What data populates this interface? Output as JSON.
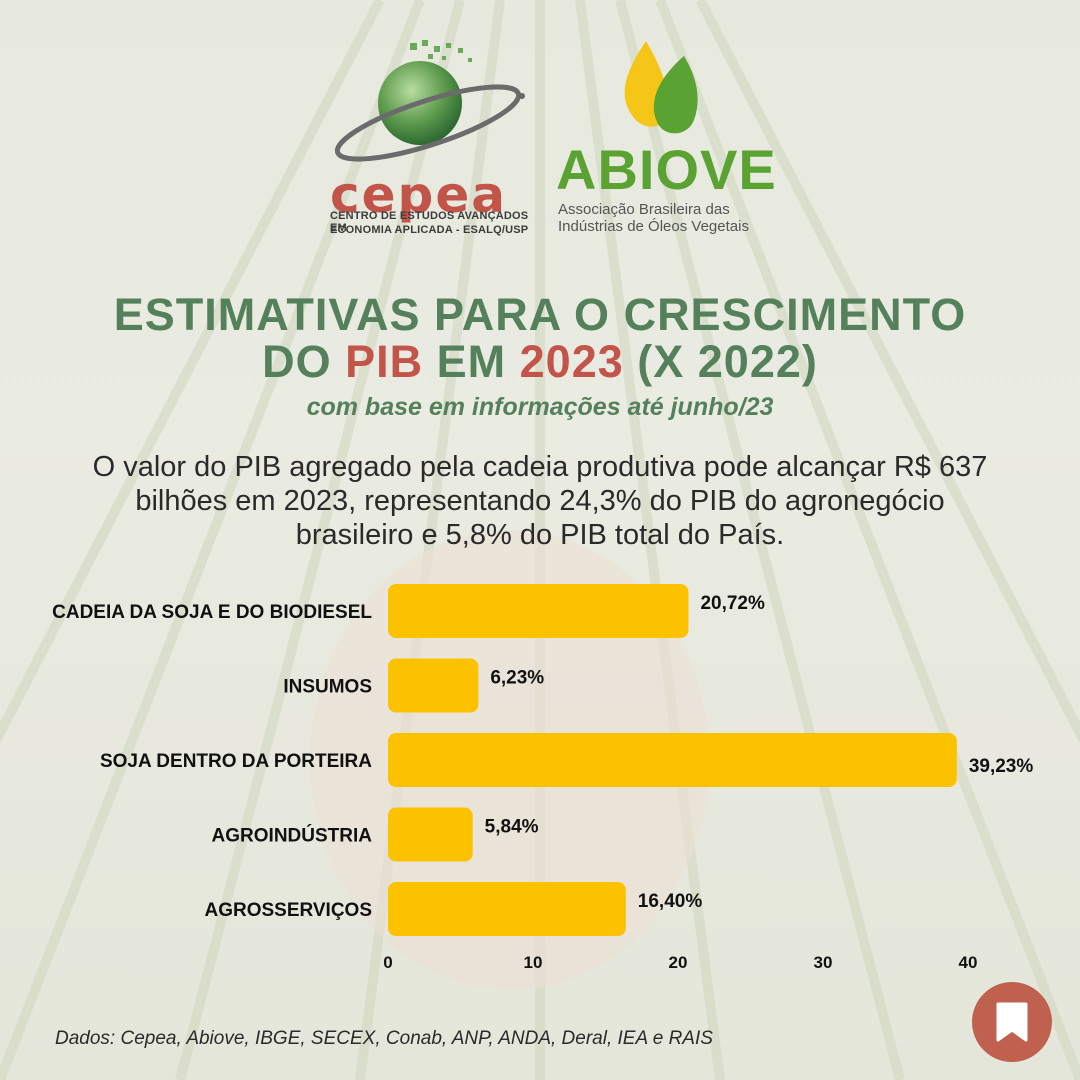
{
  "logos": {
    "cepea": {
      "word": "cepea",
      "sub_line1": "CENTRO DE ESTUDOS AVANÇADOS EM",
      "sub_line2": "ECONOMIA APLICADA - ESALQ/USP"
    },
    "abiove": {
      "word": "ABIOVE",
      "sub_line1": "Associação Brasileira das",
      "sub_line2": "Indústrias de Óleos Vegetais"
    }
  },
  "title": {
    "line1": "ESTIMATIVAS PARA O CRESCIMENTO",
    "line2_a": "DO ",
    "line2_pib": "PIB",
    "line2_b": " EM ",
    "line2_year": "2023",
    "line2_c": " (X 2022)",
    "subtitle": "com base em informações até junho/23"
  },
  "body_text": "O valor do PIB agregado pela cadeia produtiva pode alcançar R$ 637 bilhões em 2023, representando 24,3% do PIB do agronegócio brasileiro e 5,8% do PIB total do País.",
  "chart_data": {
    "type": "bar",
    "orientation": "horizontal",
    "categories": [
      "CADEIA DA SOJA E DO BIODIESEL",
      "INSUMOS",
      "SOJA DENTRO DA PORTEIRA",
      "AGROINDÚSTRIA",
      "AGROSSERVIÇOS"
    ],
    "values": [
      20.72,
      6.23,
      39.23,
      5.84,
      16.4
    ],
    "value_labels": [
      "20,72%",
      "6,23%",
      "39,23%",
      "5,84%",
      "16,40%"
    ],
    "xticks": [
      "0",
      "10",
      "20",
      "30",
      "40"
    ],
    "xlim": [
      0,
      40
    ],
    "grid": false,
    "bar_color": "#fcc200"
  },
  "source": "Dados: Cepea, Abiove, IBGE, SECEX, Conab, ANP, ANDA, Deral, IEA e RAIS",
  "colors": {
    "title_green": "#55805c",
    "accent_red": "#c2544a",
    "bar_yellow": "#fcc200",
    "bookmark": "#c0604f"
  },
  "icons": {
    "bookmark": "bookmark-icon"
  }
}
